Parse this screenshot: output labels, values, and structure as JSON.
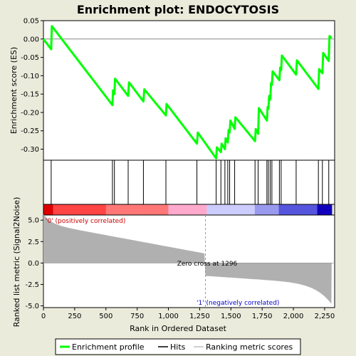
{
  "chart_data": {
    "type": "line",
    "title": "Enrichment plot: ENDOCYTOSIS",
    "panels": {
      "es": {
        "ylabel": "Enrichment score (ES)",
        "ylim": [
          -0.33,
          0.05
        ],
        "yticks": [
          "0.05",
          "0.00",
          "-0.05",
          "-0.10",
          "-0.15",
          "-0.20",
          "-0.25",
          "-0.30"
        ],
        "ytick_values": [
          0.05,
          0.0,
          -0.05,
          -0.1,
          -0.15,
          -0.2,
          -0.25,
          -0.3
        ],
        "series": [
          {
            "x": [
              0,
              62,
              67,
              552,
              557,
              568,
              573,
              678,
              685,
              800,
              807,
              980,
              985,
              1228,
              1235,
              1382,
              1388,
              1420,
              1426,
              1452,
              1458,
              1475,
              1481,
              1490,
              1496,
              1530,
              1536,
              1693,
              1699,
              1718,
              1724,
              1788,
              1794,
              1800,
              1806,
              1815,
              1821,
              1828,
              1834,
              1888,
              1894,
              1902,
              1908,
              2022,
              2028,
              2200,
              2206,
              2232,
              2238,
              2283,
              2289,
              2306
            ],
            "y": [
              0.0,
              -0.028,
              0.035,
              -0.18,
              -0.14,
              -0.15,
              -0.108,
              -0.155,
              -0.118,
              -0.17,
              -0.137,
              -0.208,
              -0.177,
              -0.285,
              -0.255,
              -0.325,
              -0.295,
              -0.308,
              -0.285,
              -0.3,
              -0.27,
              -0.282,
              -0.248,
              -0.255,
              -0.222,
              -0.245,
              -0.213,
              -0.278,
              -0.245,
              -0.258,
              -0.188,
              -0.222,
              -0.185,
              -0.19,
              -0.155,
              -0.165,
              -0.12,
              -0.125,
              -0.088,
              -0.112,
              -0.078,
              -0.085,
              -0.045,
              -0.097,
              -0.058,
              -0.136,
              -0.082,
              -0.093,
              -0.038,
              -0.06,
              0.008,
              0.003
            ]
          }
        ]
      },
      "hits": {
        "positions": [
          62,
          552,
          568,
          678,
          800,
          980,
          1228,
          1382,
          1420,
          1452,
          1475,
          1490,
          1530,
          1693,
          1718,
          1788,
          1800,
          1815,
          1828,
          1888,
          1902,
          2022,
          2200,
          2232,
          2283
        ]
      },
      "ranked": {
        "ylabel": "Ranked list metric (Signal2Noise)",
        "ylim": [
          -5.2,
          5.6
        ],
        "yticks": [
          "5.0",
          "2.5",
          "0.0",
          "-2.5",
          "-5.0"
        ],
        "ytick_values": [
          5.0,
          2.5,
          0.0,
          -2.5,
          -5.0
        ],
        "zero_cross": 1296,
        "zero_cross_label": "Zero cross at 1296",
        "pos_label": "'0' (positively correlated)",
        "neg_label": "'1' (negatively correlated)"
      }
    },
    "xlabel": "Rank in Ordered Dataset",
    "xlim": [
      0,
      2330
    ],
    "xticks": [
      "0",
      "250",
      "500",
      "750",
      "1,000",
      "1,250",
      "1,500",
      "1,750",
      "2,000",
      "2,250"
    ],
    "xtick_values": [
      0,
      250,
      500,
      750,
      1000,
      1250,
      1500,
      1750,
      2000,
      2250
    ],
    "n_genes": 2306,
    "legend": [
      {
        "label": "Enrichment profile",
        "color": "#00ff00"
      },
      {
        "label": "Hits",
        "color": "#000000"
      },
      {
        "label": "Ranking metric scores",
        "color": "#c0c0c0"
      }
    ],
    "colors": {
      "enrichment": "#00ff00",
      "metric_fill": "#b0b0b0",
      "pos_text": "#cc0000",
      "neg_text": "#0000cc",
      "background": "#ebebdc"
    }
  }
}
